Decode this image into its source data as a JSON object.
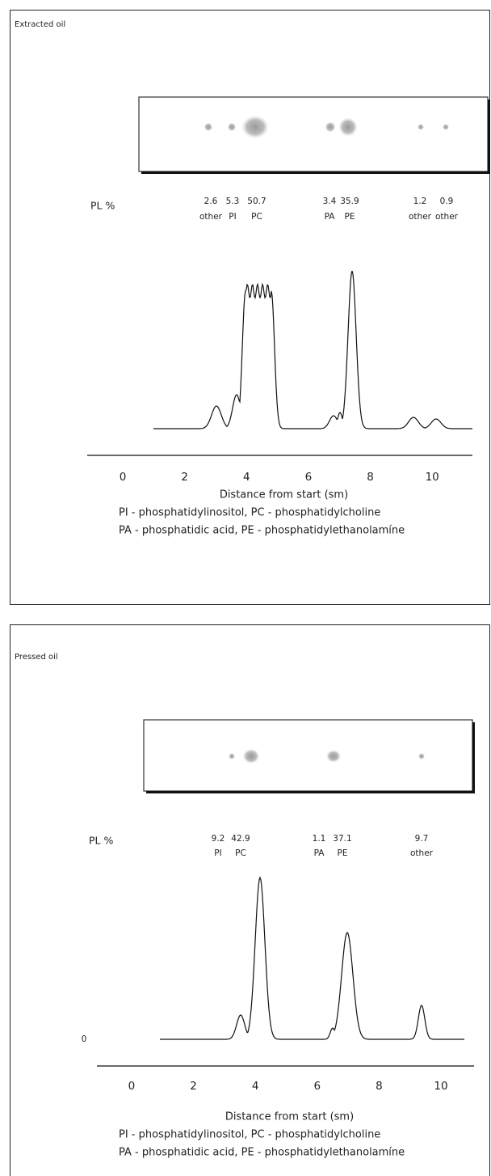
{
  "panels": [
    {
      "title": "Extracted oil",
      "pl_label": "PL %",
      "components": [
        {
          "value": 2.6,
          "label": "other"
        },
        {
          "value": 5.3,
          "label": "PI"
        },
        {
          "value": 50.7,
          "label": "PC"
        },
        {
          "value": 3.4,
          "label": "PA"
        },
        {
          "value": 35.9,
          "label": "PE"
        },
        {
          "value": 1.2,
          "label": "other"
        },
        {
          "value": 0.9,
          "label": "other"
        }
      ],
      "xlim": [
        -1.15,
        11.3
      ],
      "xticks": [
        0,
        2,
        4,
        6,
        8,
        10
      ],
      "x_label": "Distance from start (sm)",
      "legend": [
        "PI - phosphatidylinositol, PC - phosphatidylcholine",
        "PA - phosphatidic acid,   PE - phosphatidylethanolamíne"
      ]
    },
    {
      "title": "Pressed oil",
      "pl_label": "PL %",
      "components": [
        {
          "value": 9.2,
          "label": "PI"
        },
        {
          "value": 42.9,
          "label": "PC"
        },
        {
          "value": 1.1,
          "label": "PA"
        },
        {
          "value": 37.1,
          "label": "PE"
        },
        {
          "value": 9.7,
          "label": "other"
        }
      ],
      "baseline_label": 0,
      "xlim": [
        -1.12,
        11.07
      ],
      "xticks": [
        0,
        2,
        4,
        6,
        8,
        10
      ],
      "x_label": "Distance from start (sm)",
      "legend": [
        "PI - phosphatidylinositol, PC - phosphatidylcholine",
        "PA - phosphatidic acid,   PE - phosphatidylethanolamíne"
      ]
    }
  ]
}
